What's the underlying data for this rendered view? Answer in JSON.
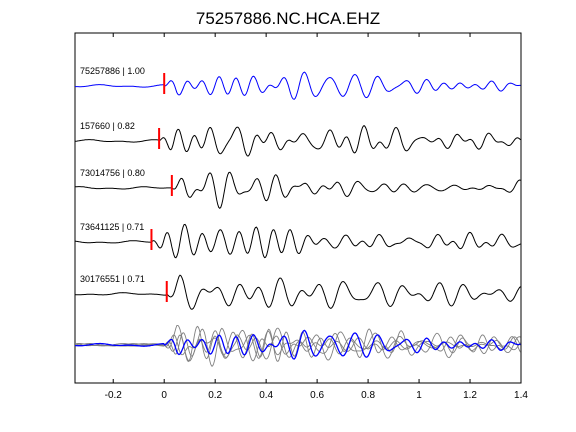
{
  "chart_data": {
    "type": "line",
    "title": "75257886.NC.HCA.EHZ",
    "xlabel": "",
    "ylabel": "",
    "xlim": [
      -0.35,
      1.4
    ],
    "xticks": [
      -0.2,
      0,
      0.2,
      0.4,
      0.6,
      0.8,
      1,
      1.2,
      1.4
    ],
    "xtick_labels": [
      "-0.2",
      "0",
      "0.2",
      "0.4",
      "0.6",
      "0.8",
      "1",
      "1.2",
      "1.4"
    ],
    "grid": false,
    "legend": "none",
    "colors": {
      "reference": "#0000ff",
      "match": "#000000",
      "overlay": "#808080",
      "pick": "#ff0000"
    },
    "series": [
      {
        "label": "75257886 | 1.00",
        "event_id": "75257886",
        "correlation": 1.0,
        "pick_time": 0.0,
        "color": "#0000ff",
        "seed": 1
      },
      {
        "label": "157660 | 0.82",
        "event_id": "157660",
        "correlation": 0.82,
        "pick_time": -0.02,
        "color": "#000000",
        "seed": 2
      },
      {
        "label": "73014756 | 0.80",
        "event_id": "73014756",
        "correlation": 0.8,
        "pick_time": 0.03,
        "color": "#000000",
        "seed": 3
      },
      {
        "label": "73641125 | 0.71",
        "event_id": "73641125",
        "correlation": 0.71,
        "pick_time": -0.05,
        "color": "#000000",
        "seed": 4
      },
      {
        "label": "30176551 | 0.71",
        "event_id": "30176551",
        "correlation": 0.71,
        "pick_time": 0.01,
        "color": "#000000",
        "seed": 5
      }
    ]
  }
}
